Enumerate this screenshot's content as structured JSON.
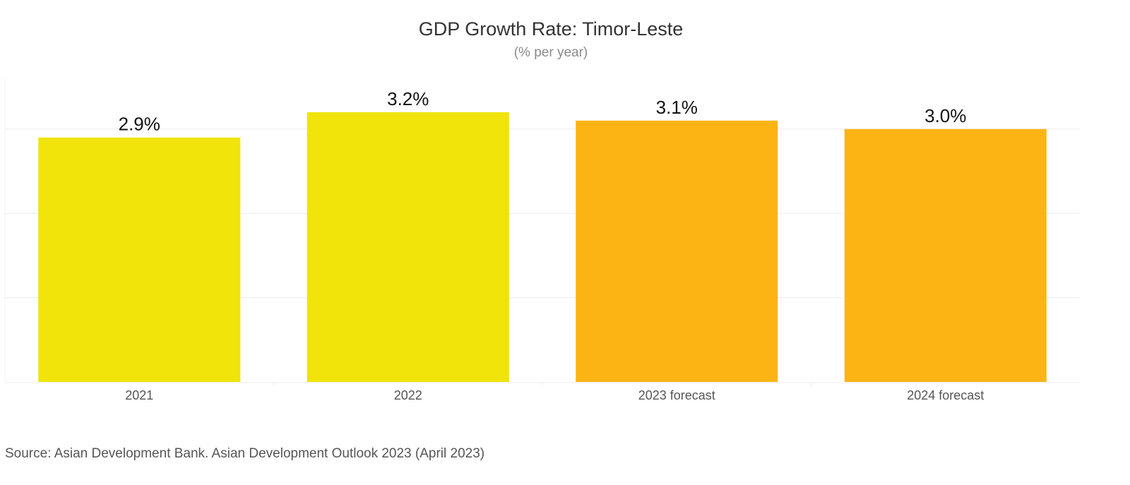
{
  "chart_data": {
    "type": "bar",
    "title": "GDP Growth Rate: Timor-Leste",
    "subtitle": "(% per year)",
    "categories": [
      "2021",
      "2022",
      "2023 forecast",
      "2024 forecast"
    ],
    "values": [
      2.9,
      3.2,
      3.1,
      3.0
    ],
    "data_labels": [
      "2.9%",
      "3.2%",
      "3.1%",
      "3.0%"
    ],
    "bar_colors": [
      "#F0E40A",
      "#F0E40A",
      "#FCB415",
      "#FCB415"
    ],
    "ylim": [
      0,
      3.6
    ],
    "y_gridlines": [
      0,
      1,
      2,
      3
    ],
    "y_tick_labels_shown": false,
    "grid": true,
    "legend": "none",
    "xlabel": "",
    "ylabel": ""
  },
  "source": "Source: Asian Development Bank. Asian Development Outlook 2023 (April 2023)"
}
